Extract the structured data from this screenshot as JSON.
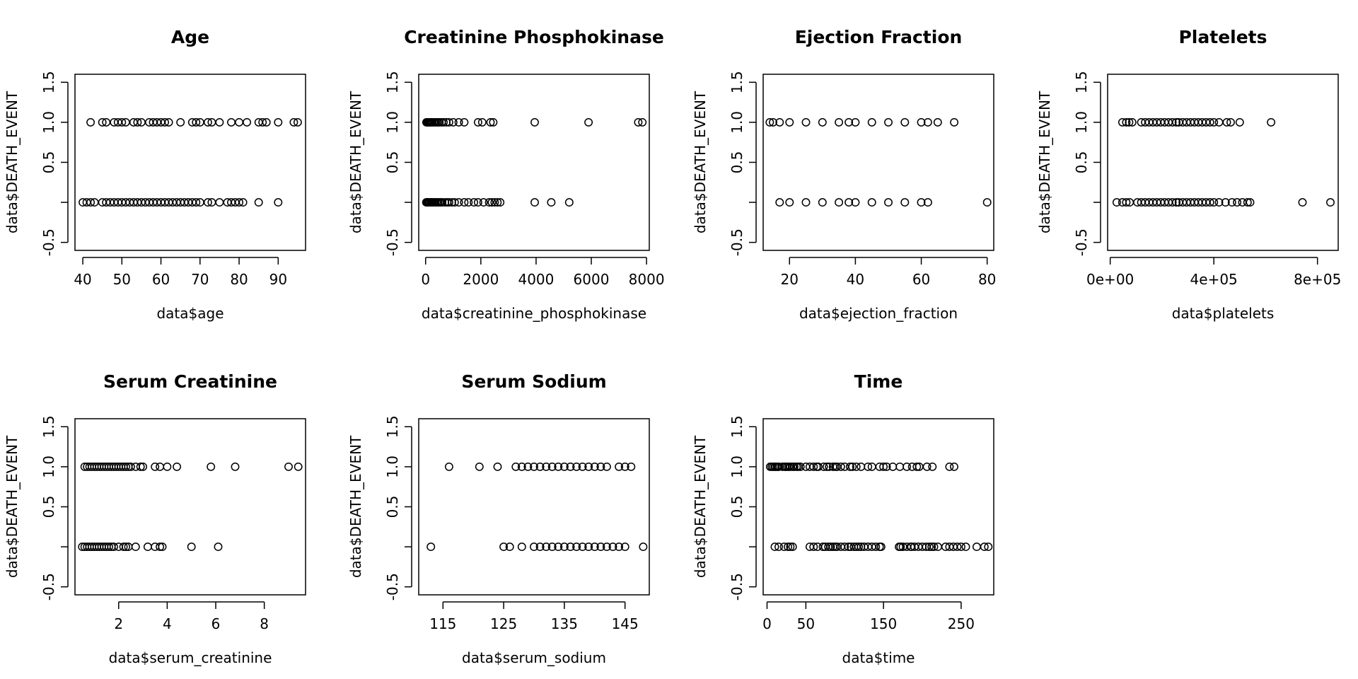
{
  "figure": {
    "background": "#ffffff",
    "ink": "#000000",
    "y_axis_label": "data$DEATH_EVENT",
    "y_ticks": [
      {
        "value": -0.5,
        "label": "-0.5"
      },
      {
        "value": 0.5,
        "label": "0.5"
      },
      {
        "value": 1.0,
        "label": "1.0"
      },
      {
        "value": 1.5,
        "label": "1.5"
      }
    ],
    "ylim": [
      -0.6,
      1.6
    ]
  },
  "chart_data": [
    {
      "type": "scatter",
      "title": "Age",
      "xlabel": "data$age",
      "ylabel": "data$DEATH_EVENT",
      "xlim": [
        38,
        97
      ],
      "ylim": [
        -0.6,
        1.6
      ],
      "x_ticks": [
        {
          "value": 40,
          "label": "40"
        },
        {
          "value": 50,
          "label": "50"
        },
        {
          "value": 60,
          "label": "60"
        },
        {
          "value": 70,
          "label": "70"
        },
        {
          "value": 80,
          "label": "80"
        },
        {
          "value": 90,
          "label": "90"
        }
      ],
      "series": [
        {
          "y": 0,
          "x": [
            40,
            41,
            42,
            43,
            45,
            46,
            47,
            48,
            49,
            50,
            51,
            52,
            53,
            54,
            55,
            56,
            57,
            58,
            59,
            60,
            61,
            62,
            63,
            64,
            65,
            66,
            67,
            68,
            69,
            70,
            72,
            73,
            75,
            77,
            78,
            79,
            80,
            81,
            85,
            90
          ]
        },
        {
          "y": 1,
          "x": [
            42,
            45,
            46,
            48,
            49,
            50,
            51,
            53,
            54,
            55,
            57,
            58,
            59,
            60,
            61,
            62,
            65,
            68,
            69,
            70,
            72,
            73,
            75,
            78,
            80,
            82,
            85,
            86,
            87,
            90,
            94,
            95
          ]
        }
      ]
    },
    {
      "type": "scatter",
      "title": "Creatinine Phosphokinase",
      "xlabel": "data$creatinine_phosphokinase",
      "ylabel": "data$DEATH_EVENT",
      "xlim": [
        -250,
        8100
      ],
      "ylim": [
        -0.6,
        1.6
      ],
      "x_ticks": [
        {
          "value": 0,
          "label": "0"
        },
        {
          "value": 2000,
          "label": "2000"
        },
        {
          "value": 4000,
          "label": "4000"
        },
        {
          "value": 6000,
          "label": "6000"
        },
        {
          "value": 8000,
          "label": "8000"
        }
      ],
      "series": [
        {
          "y": 0,
          "x": [
            23,
            50,
            80,
            100,
            130,
            160,
            200,
            230,
            260,
            300,
            350,
            400,
            450,
            500,
            560,
            600,
            700,
            780,
            850,
            950,
            1050,
            1200,
            1400,
            1550,
            1750,
            1900,
            2100,
            2300,
            2400,
            2500,
            2600,
            2700,
            3950,
            4550,
            5200
          ]
        },
        {
          "y": 1,
          "x": [
            30,
            60,
            90,
            120,
            150,
            180,
            210,
            250,
            300,
            350,
            400,
            450,
            500,
            580,
            650,
            750,
            850,
            1000,
            1200,
            1400,
            1900,
            2050,
            2350,
            2450,
            3950,
            5900,
            7700,
            7850
          ]
        }
      ]
    },
    {
      "type": "scatter",
      "title": "Ejection Fraction",
      "xlabel": "data$ejection_fraction",
      "ylabel": "data$DEATH_EVENT",
      "xlim": [
        12,
        82
      ],
      "ylim": [
        -0.6,
        1.6
      ],
      "x_ticks": [
        {
          "value": 20,
          "label": "20"
        },
        {
          "value": 40,
          "label": "40"
        },
        {
          "value": 60,
          "label": "60"
        },
        {
          "value": 80,
          "label": "80"
        }
      ],
      "series": [
        {
          "y": 0,
          "x": [
            17,
            20,
            25,
            30,
            35,
            38,
            40,
            45,
            50,
            55,
            60,
            62,
            80
          ]
        },
        {
          "y": 1,
          "x": [
            14,
            15,
            17,
            20,
            25,
            30,
            35,
            38,
            40,
            45,
            50,
            55,
            60,
            62,
            65,
            70
          ]
        }
      ]
    },
    {
      "type": "scatter",
      "title": "Platelets",
      "xlabel": "data$platelets",
      "ylabel": "data$DEATH_EVENT",
      "xlim": [
        -10000,
        880000
      ],
      "ylim": [
        -0.6,
        1.6
      ],
      "x_ticks": [
        {
          "value": 0,
          "label": "0e+00"
        },
        {
          "value": 400000,
          "label": "4e+05"
        },
        {
          "value": 800000,
          "label": "8e+05"
        }
      ],
      "series": [
        {
          "y": 0,
          "x": [
            25100,
            47000,
            62000,
            75000,
            105000,
            120000,
            135000,
            150000,
            165000,
            180000,
            195000,
            210000,
            225000,
            240000,
            255000,
            265000,
            280000,
            295000,
            310000,
            325000,
            340000,
            355000,
            370000,
            385000,
            400000,
            420000,
            445000,
            470000,
            490000,
            510000,
            530000,
            540000,
            742000,
            850000
          ]
        },
        {
          "y": 1,
          "x": [
            47000,
            62000,
            73000,
            85000,
            120000,
            135000,
            150000,
            165000,
            180000,
            195000,
            210000,
            225000,
            240000,
            255000,
            265000,
            280000,
            295000,
            310000,
            325000,
            340000,
            355000,
            370000,
            385000,
            400000,
            420000,
            450000,
            465000,
            500000,
            621000
          ]
        }
      ]
    },
    {
      "type": "scatter",
      "title": "Serum Creatinine",
      "xlabel": "data$serum_creatinine",
      "ylabel": "data$DEATH_EVENT",
      "xlim": [
        0.2,
        9.7
      ],
      "ylim": [
        -0.6,
        1.6
      ],
      "x_ticks": [
        {
          "value": 2,
          "label": "2"
        },
        {
          "value": 4,
          "label": "4"
        },
        {
          "value": 6,
          "label": "6"
        },
        {
          "value": 8,
          "label": "8"
        }
      ],
      "series": [
        {
          "y": 0,
          "x": [
            0.5,
            0.6,
            0.7,
            0.8,
            0.9,
            1.0,
            1.1,
            1.2,
            1.3,
            1.4,
            1.5,
            1.6,
            1.7,
            1.8,
            2.0,
            2.2,
            2.3,
            2.4,
            2.7,
            3.2,
            3.5,
            3.7,
            3.8,
            5.0,
            6.1
          ]
        },
        {
          "y": 1,
          "x": [
            0.6,
            0.7,
            0.8,
            0.9,
            1.0,
            1.1,
            1.2,
            1.3,
            1.4,
            1.5,
            1.6,
            1.7,
            1.8,
            1.9,
            2.0,
            2.1,
            2.2,
            2.3,
            2.4,
            2.5,
            2.7,
            2.9,
            3.0,
            3.5,
            3.7,
            4.0,
            4.4,
            5.8,
            6.8,
            9.0,
            9.4
          ]
        }
      ]
    },
    {
      "type": "scatter",
      "title": "Serum Sodium",
      "xlabel": "data$serum_sodium",
      "ylabel": "data$DEATH_EVENT",
      "xlim": [
        111,
        149
      ],
      "ylim": [
        -0.6,
        1.6
      ],
      "x_ticks": [
        {
          "value": 115,
          "label": "115"
        },
        {
          "value": 125,
          "label": "125"
        },
        {
          "value": 135,
          "label": "135"
        },
        {
          "value": 145,
          "label": "145"
        }
      ],
      "series": [
        {
          "y": 0,
          "x": [
            113,
            125,
            126,
            128,
            130,
            131,
            132,
            133,
            134,
            135,
            136,
            137,
            138,
            139,
            140,
            141,
            142,
            143,
            144,
            145,
            148
          ]
        },
        {
          "y": 1,
          "x": [
            116,
            121,
            124,
            127,
            128,
            129,
            130,
            131,
            132,
            133,
            134,
            135,
            136,
            137,
            138,
            139,
            140,
            141,
            142,
            144,
            145,
            146
          ]
        }
      ]
    },
    {
      "type": "scatter",
      "title": "Time",
      "xlabel": "data$time",
      "ylabel": "data$DEATH_EVENT",
      "xlim": [
        -5,
        292
      ],
      "ylim": [
        -0.6,
        1.6
      ],
      "x_ticks": [
        {
          "value": 0,
          "label": "0"
        },
        {
          "value": 50,
          "label": "50"
        },
        {
          "value": 150,
          "label": "150"
        },
        {
          "value": 250,
          "label": "250"
        }
      ],
      "series": [
        {
          "y": 0,
          "x": [
            10,
            15,
            22,
            27,
            30,
            33,
            55,
            60,
            65,
            72,
            75,
            79,
            82,
            85,
            88,
            90,
            95,
            100,
            105,
            108,
            112,
            115,
            118,
            121,
            125,
            130,
            135,
            140,
            145,
            147,
            170,
            172,
            175,
            180,
            185,
            186,
            190,
            195,
            200,
            205,
            209,
            212,
            215,
            220,
            230,
            235,
            240,
            245,
            250,
            256,
            270,
            280,
            285
          ]
        },
        {
          "y": 1,
          "x": [
            4,
            6,
            8,
            10,
            11,
            13,
            14,
            15,
            20,
            23,
            24,
            26,
            28,
            30,
            33,
            35,
            38,
            40,
            43,
            50,
            55,
            60,
            64,
            66,
            73,
            77,
            80,
            85,
            88,
            90,
            95,
            100,
            107,
            110,
            115,
            121,
            130,
            135,
            145,
            150,
            154,
            162,
            171,
            180,
            187,
            193,
            196,
            206,
            213,
            235,
            241
          ]
        }
      ]
    }
  ]
}
